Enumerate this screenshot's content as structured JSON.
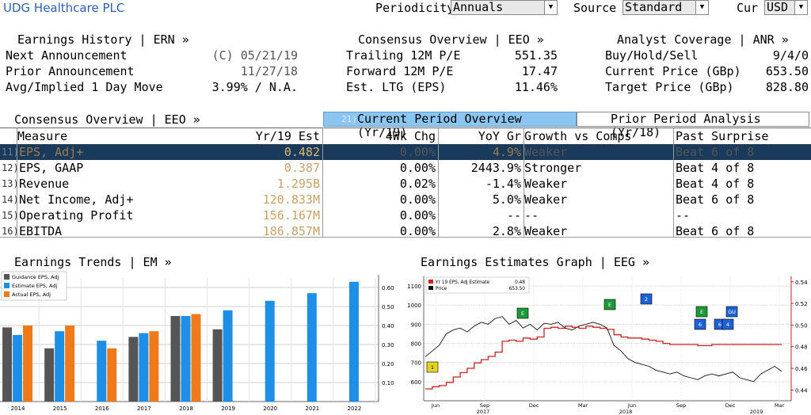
{
  "header": {
    "company": "UDG Healthcare PLC",
    "periodicity_label": "Periodicity",
    "periodicity_value": "Annuals",
    "source_label": "Source",
    "source_value": "Standard",
    "cur_label": "Cur",
    "cur_value": "USD"
  },
  "earnings_history": {
    "title": "Earnings History | ERN »",
    "next_label": "Next Announcement",
    "next_value": "(C) 05/21/19",
    "prior_label": "Prior Announcement",
    "prior_value": "11/27/18",
    "move_label": "Avg/Implied 1 Day Move",
    "move_value": "3.99% / N.A."
  },
  "consensus_top": {
    "title": "Consensus Overview | EEO »",
    "trailing_label": "Trailing 12M P/E",
    "trailing_value": "551.35",
    "forward_label": "Forward 12M P/E",
    "forward_value": "17.47",
    "ltg_label": "Est. LTG (EPS)",
    "ltg_value": "11.46%"
  },
  "analyst": {
    "title": "Analyst Coverage | ANR »",
    "bhs_label": "Buy/Hold/Sell",
    "bhs_value": "9/4/0",
    "price_label": "Current Price (GBp)",
    "price_value": "653.50",
    "target_label": "Target Price (GBp)",
    "target_value": "828.80"
  },
  "consensus_table": {
    "title": "Consensus Overview | EEO »",
    "tab_current_num": "21)",
    "tab_current": "Current Period Overview (Yr/19)",
    "tab_prior": "Prior Period Analysis (Yr/18)",
    "columns": [
      "Measure",
      "Yr/19 Est",
      "4Wk Chg",
      "YoY Gr",
      "Growth vs Comps",
      "Past Surprise"
    ],
    "rows": [
      {
        "idx": "11)",
        "measure": "EPS, Adj+",
        "est": "0.482",
        "chg": "0.00%",
        "yoy": "4.9%",
        "growth": "Weaker",
        "surprise": "Beat 6 of 8"
      },
      {
        "idx": "12)",
        "measure": "EPS, GAAP",
        "est": "0.387",
        "chg": "0.00%",
        "yoy": "2443.9%",
        "growth": "Stronger",
        "surprise": "Beat 4 of 8"
      },
      {
        "idx": "13)",
        "measure": "Revenue",
        "est": "1.295B",
        "chg": "0.02%",
        "yoy": "-1.4%",
        "growth": "Weaker",
        "surprise": "Beat 4 of 8"
      },
      {
        "idx": "14)",
        "measure": "Net Income, Adj+",
        "est": "120.833M",
        "chg": "0.00%",
        "yoy": "5.0%",
        "growth": "Weaker",
        "surprise": "Beat 6 of 8"
      },
      {
        "idx": "15)",
        "measure": "Operating Profit",
        "est": "156.167M",
        "chg": "0.00%",
        "yoy": "--",
        "growth": "--",
        "surprise": "--"
      },
      {
        "idx": "16)",
        "measure": "EBITDA",
        "est": "186.857M",
        "chg": "0.00%",
        "yoy": "2.8%",
        "growth": "Weaker",
        "surprise": "Beat 6 of 8"
      }
    ]
  },
  "trends": {
    "title": "Earnings Trends | EM »"
  },
  "eeg": {
    "title": "Earnings Estimates Graph | EEG »"
  },
  "chart_data": [
    {
      "type": "bar",
      "title": "",
      "categories": [
        "2014",
        "2015",
        "2016",
        "2017",
        "2018",
        "2019",
        "2020",
        "2021",
        "2022"
      ],
      "series": [
        {
          "name": "Guidance EPS, Adj",
          "color": "#555555",
          "values": [
            0.39,
            0.28,
            null,
            0.34,
            0.45,
            0.38,
            null,
            null,
            null
          ]
        },
        {
          "name": "Estimate EPS, Adj",
          "color": "#1e8fe6",
          "values": [
            0.35,
            0.37,
            0.32,
            0.36,
            0.45,
            0.48,
            0.53,
            0.57,
            0.63
          ]
        },
        {
          "name": "Actual EPS, Adj",
          "color": "#f07a1a",
          "values": [
            0.4,
            0.4,
            0.28,
            0.37,
            0.46,
            null,
            null,
            null,
            null
          ]
        }
      ],
      "ylim": [
        0.0,
        0.65
      ],
      "yticks": [
        "0.10",
        "0.20",
        "0.30",
        "0.40",
        "0.50",
        "0.60"
      ],
      "grid": true,
      "legend": "top-left"
    },
    {
      "type": "line",
      "title": "",
      "legend_items": [
        {
          "label": "Yr 19 EPS, Adj Estimate",
          "value": "0.48",
          "color": "#cc2222"
        },
        {
          "label": "Price",
          "value": "653.50",
          "color": "#111111"
        }
      ],
      "left_ticks": [
        "600",
        "700",
        "800",
        "900",
        "1000",
        "1100"
      ],
      "right_ticks": [
        "0.44",
        "0.46",
        "0.48",
        "0.50",
        "0.52",
        "0.54"
      ],
      "x_months": [
        "Jun",
        "Sep",
        "Dec",
        "Mar",
        "Jun",
        "Sep",
        "Dec",
        "Mar"
      ],
      "x_years": [
        "2017",
        "2018",
        "2019"
      ],
      "left_ylim": [
        500,
        1150
      ],
      "right_ylim": [
        0.43,
        0.545
      ],
      "price": [
        730,
        760,
        790,
        850,
        870,
        880,
        860,
        890,
        910,
        900,
        930,
        940,
        900,
        920,
        880,
        900,
        870,
        905,
        900,
        910,
        880,
        870,
        890,
        900,
        910,
        900,
        880,
        790,
        760,
        720,
        700,
        690,
        680,
        660,
        650,
        640,
        650,
        630,
        620,
        610,
        630,
        640,
        630,
        640,
        650,
        620,
        610,
        600,
        640,
        660,
        680,
        653
      ],
      "estimate": [
        0.441,
        0.443,
        0.444,
        0.447,
        0.452,
        0.456,
        0.46,
        0.465,
        0.468,
        0.471,
        0.475,
        0.485,
        0.486,
        0.485,
        0.488,
        0.487,
        0.489,
        0.497,
        0.498,
        0.497,
        0.499,
        0.498,
        0.497,
        0.499,
        0.498,
        0.497,
        0.496,
        0.491,
        0.489,
        0.488,
        0.488,
        0.487,
        0.486,
        0.485,
        0.483,
        0.482,
        0.482,
        0.482,
        0.482,
        0.481,
        0.481,
        0.482,
        0.482,
        0.482,
        0.482,
        0.482,
        0.482,
        0.482,
        0.482,
        0.482,
        0.482,
        0.482
      ],
      "markers": [
        {
          "label": "E",
          "color": "#1c9a3a"
        },
        {
          "label": "E",
          "color": "#1c9a3a"
        },
        {
          "label": "2",
          "color": "#1c62d6"
        },
        {
          "label": "E",
          "color": "#1c9a3a"
        },
        {
          "label": "GU",
          "color": "#1c62d6"
        },
        {
          "label": "6",
          "color": "#1c62d6"
        },
        {
          "label": "6",
          "color": "#1c62d6"
        },
        {
          "label": "4",
          "color": "#1c62d6"
        },
        {
          "label": "1",
          "color": "#e6d320"
        }
      ]
    }
  ]
}
